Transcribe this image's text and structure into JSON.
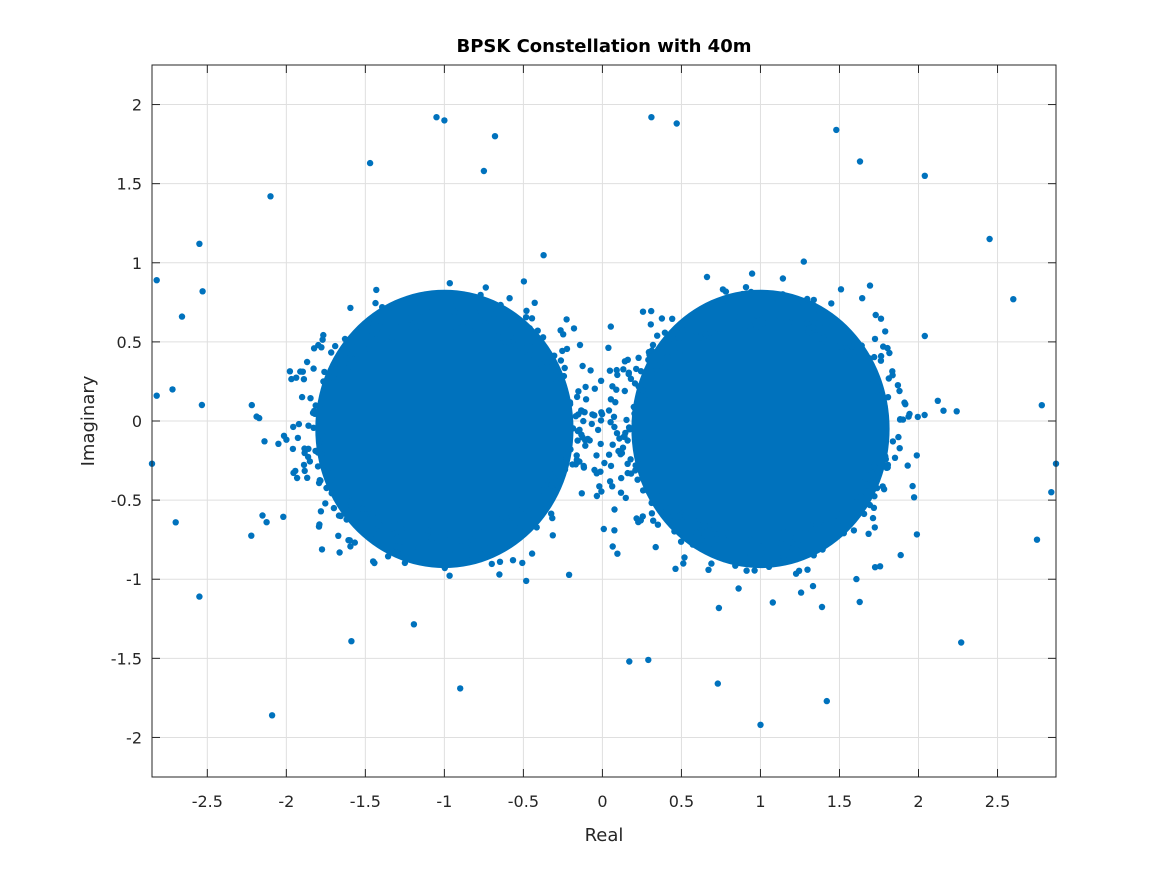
{
  "chart_data": {
    "type": "scatter",
    "title": "BPSK Constellation with 40m",
    "xlabel": "Real",
    "ylabel": "Imaginary",
    "xlim": [
      -2.85,
      2.87
    ],
    "ylim": [
      -2.25,
      2.25
    ],
    "xticks": [
      -2.5,
      -2,
      -1.5,
      -1,
      -0.5,
      0,
      0.5,
      1,
      1.5,
      2,
      2.5
    ],
    "yticks": [
      -2,
      -1.5,
      -1,
      -0.5,
      0,
      0.5,
      1,
      1.5,
      2
    ],
    "xtick_labels": [
      "-2.5",
      "-2",
      "-1.5",
      "-1",
      "-0.5",
      "0",
      "0.5",
      "1",
      "1.5",
      "2",
      "2.5"
    ],
    "ytick_labels": [
      "-2",
      "-1.5",
      "-1",
      "-0.5",
      "0",
      "0.5",
      "1",
      "1.5",
      "2"
    ],
    "grid": true,
    "marker_color": "#0072BD",
    "series": [
      {
        "clusters": [
          {
            "center": [
              -1.0,
              -0.05
            ],
            "spread": [
              0.38,
              0.32
            ]
          },
          {
            "center": [
              1.0,
              -0.05
            ],
            "spread": [
              0.38,
              0.32
            ]
          }
        ],
        "outliers": [
          [
            -1.05,
            1.92
          ],
          [
            -1.0,
            1.9
          ],
          [
            -0.68,
            1.8
          ],
          [
            0.31,
            1.92
          ],
          [
            0.47,
            1.88
          ],
          [
            1.48,
            1.84
          ],
          [
            1.63,
            1.64
          ],
          [
            2.04,
            1.55
          ],
          [
            -1.47,
            1.63
          ],
          [
            -0.75,
            1.58
          ],
          [
            -2.82,
            0.89
          ],
          [
            -2.66,
            0.66
          ],
          [
            -2.55,
            1.12
          ],
          [
            -2.53,
            0.82
          ],
          [
            -2.09,
            -1.86
          ],
          [
            1.0,
            -1.92
          ],
          [
            1.42,
            -1.77
          ],
          [
            2.27,
            -1.4
          ],
          [
            2.84,
            -0.45
          ],
          [
            2.87,
            -0.27
          ],
          [
            2.75,
            -0.75
          ],
          [
            -2.85,
            -0.27
          ],
          [
            -2.7,
            -0.64
          ],
          [
            -2.55,
            -1.11
          ],
          [
            -2.1,
            1.42
          ],
          [
            2.45,
            1.15
          ],
          [
            2.78,
            0.1
          ],
          [
            2.6,
            0.77
          ],
          [
            -2.72,
            0.2
          ],
          [
            -2.82,
            0.16
          ],
          [
            -0.9,
            -1.69
          ],
          [
            0.17,
            -1.52
          ],
          [
            0.29,
            -1.51
          ],
          [
            0.73,
            -1.66
          ]
        ]
      }
    ]
  }
}
